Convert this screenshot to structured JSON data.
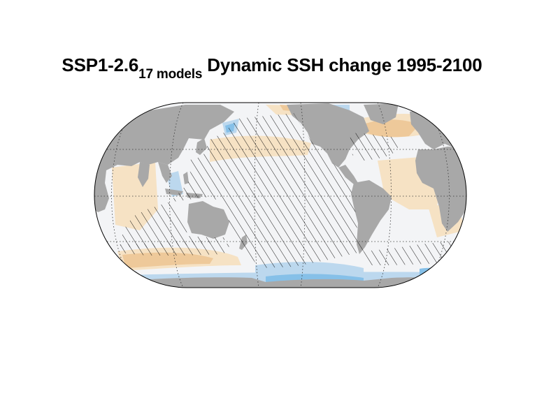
{
  "title": {
    "scenario": "SSP1-2.6",
    "models": "17 models",
    "main": "Dynamic SSH change 1995-2100"
  },
  "colors": {
    "land": "#a8a8a8",
    "ocean_near_zero": "#f3f4f6",
    "rise": "#f6e2c4",
    "rise_strong": "#eec99a",
    "fall": "#bcd8ee",
    "fall_strong": "#86c0e8",
    "hatch": "#000000"
  }
}
